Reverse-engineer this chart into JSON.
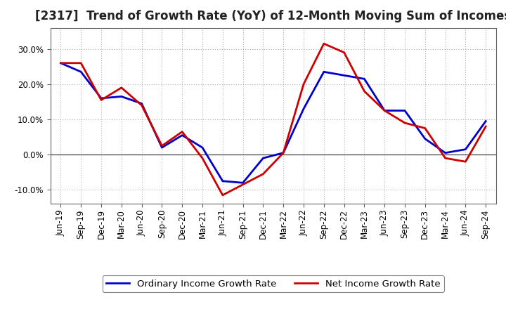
{
  "title": "[2317]  Trend of Growth Rate (YoY) of 12-Month Moving Sum of Incomes",
  "x_labels": [
    "Jun-19",
    "Sep-19",
    "Dec-19",
    "Mar-20",
    "Jun-20",
    "Sep-20",
    "Dec-20",
    "Mar-21",
    "Jun-21",
    "Sep-21",
    "Dec-21",
    "Mar-22",
    "Jun-22",
    "Sep-22",
    "Dec-22",
    "Mar-23",
    "Jun-23",
    "Sep-23",
    "Dec-23",
    "Mar-24",
    "Jun-24",
    "Sep-24"
  ],
  "ordinary_income": [
    26.0,
    23.5,
    16.0,
    16.5,
    14.5,
    2.0,
    5.5,
    2.0,
    -7.5,
    -8.0,
    -1.0,
    0.5,
    13.0,
    23.5,
    22.5,
    21.5,
    12.5,
    12.5,
    4.5,
    0.5,
    1.5,
    9.5
  ],
  "net_income": [
    26.0,
    26.0,
    15.5,
    19.0,
    14.0,
    2.5,
    6.5,
    -1.0,
    -11.5,
    -8.5,
    -5.5,
    0.5,
    20.0,
    31.5,
    29.0,
    18.0,
    12.5,
    9.0,
    7.5,
    -1.0,
    -2.0,
    8.0
  ],
  "ordinary_color": "#0000cc",
  "net_color": "#cc0000",
  "ylim": [
    -14.0,
    36.0
  ],
  "yticks": [
    -10.0,
    0.0,
    10.0,
    20.0,
    30.0
  ],
  "background_color": "#ffffff",
  "plot_bg_color": "#ffffff",
  "grid_color": "#aaaaaa",
  "legend_ordinary": "Ordinary Income Growth Rate",
  "legend_net": "Net Income Growth Rate",
  "line_width": 2.0,
  "title_fontsize": 12,
  "legend_fontsize": 9.5,
  "tick_fontsize": 8.5,
  "title_color": "#222222"
}
